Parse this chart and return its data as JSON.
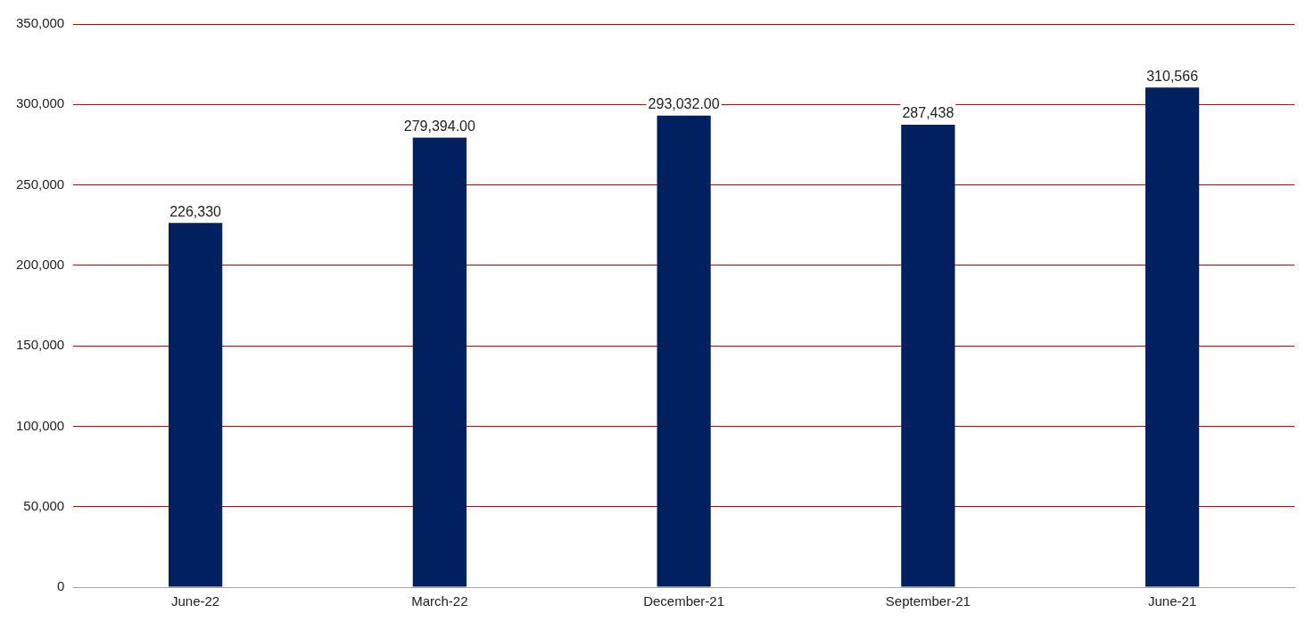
{
  "chart_data": {
    "type": "bar",
    "categories": [
      "June-22",
      "March-22",
      "December-21",
      "September-21",
      "June-21"
    ],
    "values": [
      226330,
      279394,
      293032,
      287438,
      310566
    ],
    "value_labels": [
      "226,330",
      "279,394.00",
      "293,032.00",
      "287,438",
      "310,566"
    ],
    "color": "#002060",
    "ylim": [
      0,
      350000
    ],
    "yticks": [
      {
        "value": 0,
        "label": "0"
      },
      {
        "value": 50000,
        "label": "50,000"
      },
      {
        "value": 100000,
        "label": "100,000"
      },
      {
        "value": 150000,
        "label": "150,000"
      },
      {
        "value": 200000,
        "label": "200,000"
      },
      {
        "value": 250000,
        "label": "250,000"
      },
      {
        "value": 300000,
        "label": "300,000"
      },
      {
        "value": 350000,
        "label": "350,000"
      }
    ],
    "grid": "y",
    "legend": false
  }
}
